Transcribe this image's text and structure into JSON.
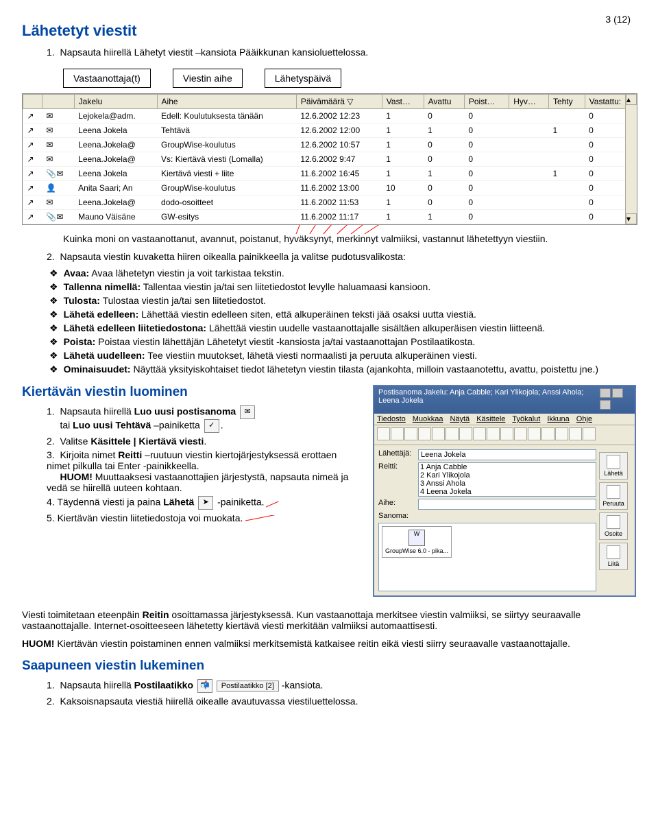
{
  "page_number": "3 (12)",
  "title1": "Lähetetyt viestit",
  "intro1": "Napsauta hiirellä Lähetyt viestit –kansiota Pääikkunan kansioluettelossa.",
  "labels": {
    "a": "Vastaanottaja(t)",
    "b": "Viestin aihe",
    "c": "Lähetyspäivä"
  },
  "table": {
    "cols": [
      "",
      "",
      "Jakelu",
      "Aihe",
      "Päivämäärä ▽",
      "Vast…",
      "Avattu",
      "Poist…",
      "Hyv…",
      "Tehty",
      "Vastattu:"
    ],
    "rows": [
      [
        "↗",
        "✉",
        "Lejokela@adm.",
        "Edell: Koulutuksesta tänään",
        "12.6.2002 12:23",
        "1",
        "0",
        "0",
        "",
        "",
        "0"
      ],
      [
        "↗",
        "✉",
        "Leena Jokela",
        "Tehtävä",
        "12.6.2002 12:00",
        "1",
        "1",
        "0",
        "",
        "1",
        "0"
      ],
      [
        "↗",
        "✉",
        "Leena.Jokela@",
        "GroupWise-koulutus",
        "12.6.2002 10:57",
        "1",
        "0",
        "0",
        "",
        "",
        "0"
      ],
      [
        "↗",
        "✉",
        "Leena.Jokela@",
        "Vs: Kiertävä viesti (Lomalla)",
        "12.6.2002 9:47",
        "1",
        "0",
        "0",
        "",
        "",
        "0"
      ],
      [
        "↗",
        "📎✉",
        "Leena Jokela",
        "Kiertävä viesti + liite",
        "11.6.2002 16:45",
        "1",
        "1",
        "0",
        "",
        "1",
        "0"
      ],
      [
        "↗",
        "👤",
        "Anita Saari;  An",
        "GroupWise-koulutus",
        "11.6.2002 13:00",
        "10",
        "0",
        "0",
        "",
        "",
        "0"
      ],
      [
        "↗",
        "✉",
        "Leena.Jokela@",
        "dodo-osoitteet",
        "11.6.2002 11:53",
        "1",
        "0",
        "0",
        "",
        "",
        "0"
      ],
      [
        "↗",
        "📎✉",
        "Mauno Väisäne",
        "GW-esitys",
        "11.6.2002 11:17",
        "1",
        "1",
        "0",
        "",
        "",
        "0"
      ]
    ]
  },
  "after_table": "Kuinka moni on vastaanottanut, avannut, poistanut, hyväksynyt, merkinnyt valmiiksi, vastannut lähetettyyn viestiin.",
  "step2": "Napsauta viestin kuvaketta hiiren oikealla painikkeella ja valitse pudotusvalikosta:",
  "bullets": [
    {
      "b": "Avaa:",
      "t": " Avaa lähetetyn viestin ja voit tarkistaa tekstin."
    },
    {
      "b": "Tallenna nimellä:",
      "t": " Tallentaa viestin ja/tai sen liitetiedostot levylle haluamaasi kansioon."
    },
    {
      "b": "Tulosta:",
      "t": " Tulostaa viestin ja/tai sen liitetiedostot."
    },
    {
      "b": "Lähetä edelleen:",
      "t": " Lähettää viestin edelleen siten, että alkuperäinen teksti jää osaksi uutta viestiä."
    },
    {
      "b": "Lähetä edelleen liitetiedostona:",
      "t": " Lähettää viestin uudelle vastaanottajalle sisältäen alkuperäisen viestin liitteenä."
    },
    {
      "b": "Poista:",
      "t": " Poistaa viestin lähettäjän Lähetetyt viestit -kansiosta ja/tai vastaanottajan Postilaatikosta."
    },
    {
      "b": "Lähetä uudelleen:",
      "t": " Tee viestiin muutokset, lähetä viesti normaalisti ja peruuta alkuperäinen viesti."
    },
    {
      "b": "Ominaisuudet:",
      "t": " Näyttää yksityiskohtaiset tiedot lähetetyn viestin tilasta (ajankohta, milloin vastaanotettu, avattu, poistettu jne.)"
    }
  ],
  "title2": "Kiertävän viestin luominen",
  "k_steps": {
    "s1a": "Napsauta hiirellä ",
    "s1b": "Luo uusi postisanoma",
    "s1c": "tai ",
    "s1d": "Luo uusi Tehtävä",
    "s1e": " –painiketta",
    "s2": "Valitse ",
    "s2b": "Käsittele | Kiertävä viesti",
    "s3a": "Kirjoita nimet ",
    "s3b": "Reitti",
    "s3c": " –ruutuun viestin kiertojärjestyksessä erottaen nimet pilkulla tai Enter -painikkeella.",
    "s3huom": "HUOM!",
    "s3huomt": " Muuttaaksesi vastaanottajien järjestystä, napsauta nimeä ja vedä se hiirellä uuteen kohtaan.",
    "s4a": "4. Täydennä viesti ja paina ",
    "s4b": "Lähetä",
    "s4c": " -painiketta.",
    "s5": "5. Kiertävän viestin liitetiedostoja voi muokata."
  },
  "window": {
    "title": "Postisanoma Jakelu: Anja Cabble; Kari Ylikojola; Anssi Ahola; Leena Jokela",
    "menus": [
      "Tiedosto",
      "Muokkaa",
      "Näytä",
      "Käsittele",
      "Työkalut",
      "Ikkuna",
      "Ohje"
    ],
    "from_lbl": "Lähettäjä:",
    "from": "Leena Jokela",
    "reitti_lbl": "Reitti:",
    "aihe_lbl": "Aihe:",
    "sanoma_lbl": "Sanoma:",
    "recips": [
      "1  Anja Cabble",
      "2  Kari Ylikojola",
      "3  Anssi Ahola",
      "4  Leena Jokela"
    ],
    "attach": "GroupWise 6.0 - pika...",
    "side": [
      "Lähetä",
      "Peruuta",
      "Osoite",
      "Liitä"
    ]
  },
  "after_window": "Viesti toimitetaan eteenpäin Reitin osoittamassa järjestyksessä. Kun vastaanottaja merkitsee viestin valmiiksi, se siirtyy seuraavalle vastaanottajalle. Internet-osoitteeseen lähetetty kiertävä viesti merkitään valmiiksi automaattisesti.",
  "huom2a": "HUOM!",
  "huom2b": " Kiertävän viestin poistaminen ennen valmiiksi merkitsemistä katkaisee reitin eikä viesti siirry seuraavalle vastaanottajalle.",
  "title3": "Saapuneen viestin lukeminen",
  "s_steps": {
    "s1a": "Napsauta hiirellä ",
    "s1b": "Postilaatikko",
    "s1c": " -kansiota.",
    "folder_label": "Postilaatikko [2]",
    "s2": "Kaksoisnapsauta viestiä hiirellä oikealle avautuvassa viestiluettelossa."
  },
  "colors": {
    "heading": "#0046a4",
    "red": "#ff0000"
  }
}
